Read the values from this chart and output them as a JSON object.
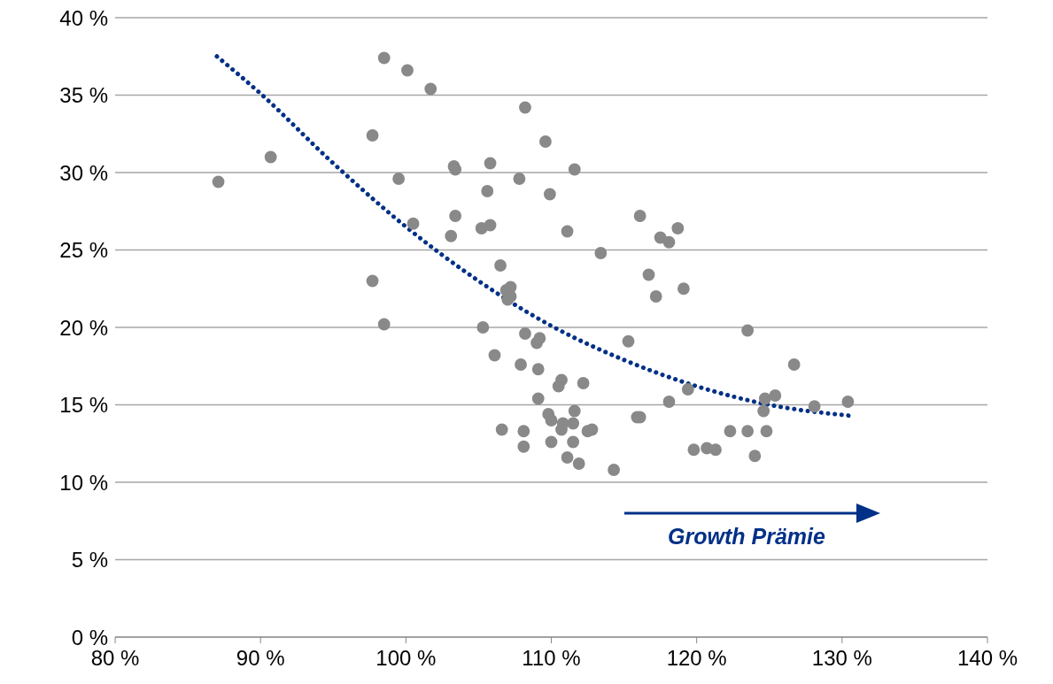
{
  "chart_data": {
    "type": "scatter",
    "xlim": [
      80,
      140
    ],
    "xticks": [
      {
        "value": 80,
        "label": "80 %"
      },
      {
        "value": 90,
        "label": "90 %"
      },
      {
        "value": 100,
        "label": "100 %"
      },
      {
        "value": 110,
        "label": "110 %"
      },
      {
        "value": 120,
        "label": "120 %"
      },
      {
        "value": 130,
        "label": "130 %"
      },
      {
        "value": 140,
        "label": "140 %"
      }
    ],
    "ylim": [
      0,
      40
    ],
    "yticks": [
      {
        "value": 0,
        "label": "0 %"
      },
      {
        "value": 5,
        "label": "5 %"
      },
      {
        "value": 10,
        "label": "10 %"
      },
      {
        "value": 15,
        "label": "15 %"
      },
      {
        "value": 20,
        "label": "20 %"
      },
      {
        "value": 25,
        "label": "25 %"
      },
      {
        "value": 30,
        "label": "30 %"
      },
      {
        "value": 35,
        "label": "35 %"
      },
      {
        "value": 40,
        "label": "40 %"
      }
    ],
    "grid": "y",
    "annotations": [
      "Growth Prämie"
    ],
    "series": [
      {
        "marker": "circle",
        "color": "#898989",
        "x": [
          87.1,
          90.7,
          98.5,
          100.1,
          101.7,
          97.7,
          99.5,
          100.5,
          97.7,
          98.5,
          103.3,
          103.4,
          103.4,
          103.1,
          105.2,
          105.6,
          105.8,
          105.8,
          108.2,
          109.6,
          107.8,
          109.9,
          111.6,
          111.1,
          113.4,
          106.5,
          106.9,
          107.2,
          107.2,
          107.0,
          105.3,
          108.2,
          109.0,
          109.2,
          106.1,
          107.9,
          109.1,
          109.1,
          110.7,
          110.5,
          112.2,
          106.6,
          108.1,
          108.1,
          109.8,
          110.0,
          110.8,
          110.7,
          111.6,
          111.5,
          110.0,
          111.5,
          111.1,
          111.9,
          112.5,
          112.8,
          114.3,
          115.3,
          116.1,
          117.5,
          118.1,
          118.7,
          116.7,
          117.2,
          119.1,
          119.4,
          118.1,
          115.9,
          116.1,
          122.3,
          123.5,
          124.8,
          119.8,
          120.7,
          121.3,
          124.0,
          123.5,
          126.7,
          124.7,
          125.4,
          124.6,
          128.1,
          130.4
        ],
        "values": [
          29.4,
          31.0,
          37.4,
          36.6,
          35.4,
          32.4,
          29.6,
          26.7,
          23.0,
          20.2,
          30.4,
          30.2,
          27.2,
          25.9,
          26.4,
          28.8,
          30.6,
          26.6,
          34.2,
          32.0,
          29.6,
          28.6,
          30.2,
          26.2,
          24.8,
          24.0,
          22.4,
          22.6,
          22.0,
          21.8,
          20.0,
          19.6,
          19.0,
          19.3,
          18.2,
          17.6,
          17.3,
          15.4,
          16.6,
          16.2,
          16.4,
          13.4,
          13.3,
          12.3,
          14.4,
          14.0,
          13.8,
          13.4,
          14.6,
          13.8,
          12.6,
          12.6,
          11.6,
          11.2,
          13.3,
          13.4,
          10.8,
          19.1,
          27.2,
          25.8,
          25.5,
          26.4,
          23.4,
          22.0,
          22.5,
          16.0,
          15.2,
          14.2,
          14.2,
          13.3,
          13.3,
          13.3,
          12.1,
          12.2,
          12.1,
          11.7,
          19.8,
          17.6,
          15.4,
          15.6,
          14.6,
          14.9,
          15.2
        ]
      },
      {
        "type": "line",
        "color": "#003087",
        "line_style": "dotted",
        "x": [
          87,
          90,
          95,
          100,
          105,
          110,
          115,
          120,
          125,
          130.5
        ],
        "values": [
          37.5,
          35.1,
          30.6,
          26.5,
          23.0,
          20.1,
          17.9,
          16.2,
          15.0,
          14.3
        ]
      }
    ]
  }
}
